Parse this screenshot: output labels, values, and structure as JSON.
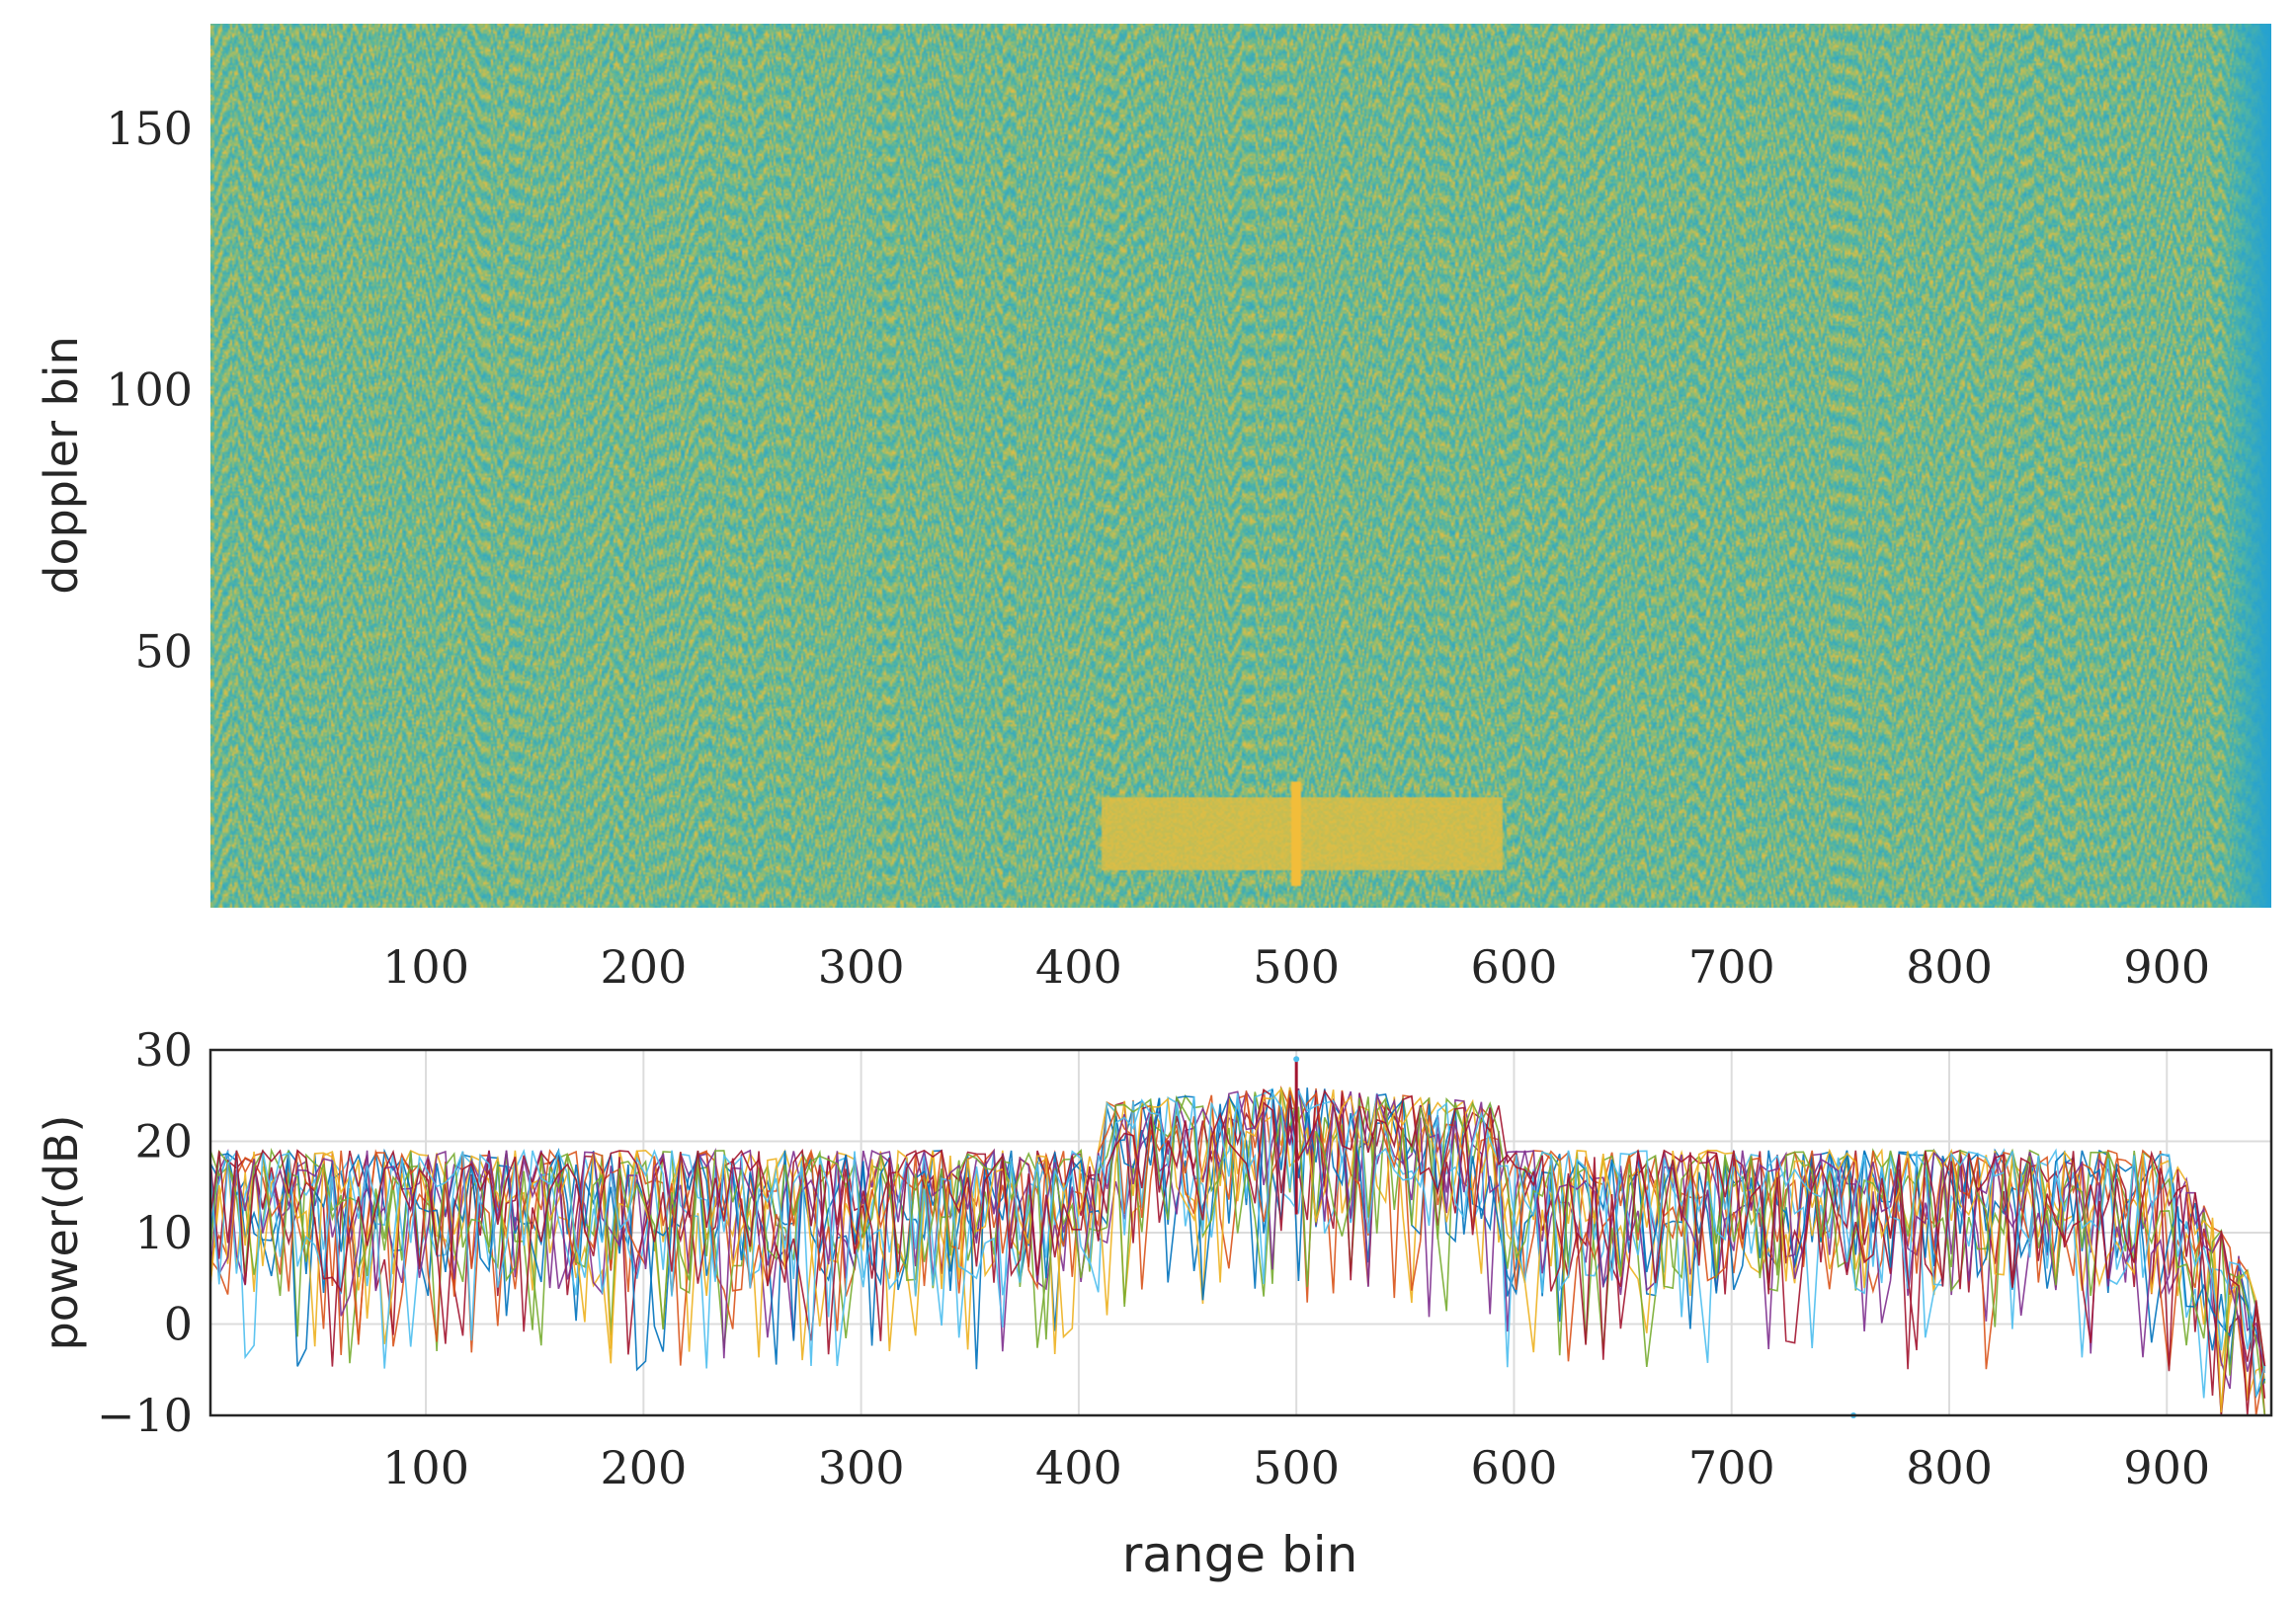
{
  "chart_data": [
    {
      "type": "heatmap",
      "title": "",
      "xlabel": "",
      "ylabel": "doppler bin",
      "xlim": [
        1,
        948
      ],
      "ylim": [
        1,
        170
      ],
      "xticks": [
        100,
        200,
        300,
        400,
        500,
        600,
        700,
        800,
        900
      ],
      "yticks": [
        50,
        100,
        150
      ],
      "colormap": "parula",
      "colors": {
        "low": "#1e9fd8",
        "mid": "#55b6a0",
        "high": "#9fbd68",
        "peak": "#f2bd3a"
      },
      "background_range_dB": [
        0,
        20
      ],
      "regions": [
        {
          "label": "target",
          "x_range": [
            410,
            595
          ],
          "y_range": [
            8,
            22
          ],
          "level_dB": 27
        },
        {
          "label": "target-line",
          "x_range": [
            498,
            502
          ],
          "y_range": [
            5,
            25
          ],
          "level_dB": 30
        },
        {
          "label": "edge-rolloff",
          "x_range": [
            925,
            948
          ],
          "y_range": [
            1,
            170
          ],
          "level_dB": 2
        }
      ]
    },
    {
      "type": "line",
      "title": "",
      "xlabel": "range bin",
      "ylabel": "power(dB)",
      "xlim": [
        1,
        948
      ],
      "ylim": [
        -10,
        30
      ],
      "xticks": [
        100,
        200,
        300,
        400,
        500,
        600,
        700,
        800,
        900
      ],
      "yticks": [
        -10,
        0,
        10,
        20,
        30
      ],
      "grid": true,
      "series_count": 170,
      "series_colors": [
        "#0072bd",
        "#d95319",
        "#edb120",
        "#7e2f8e",
        "#77ac30",
        "#4dbeee",
        "#a2142f"
      ],
      "envelope_peak_dB": {
        "background": 19,
        "target_region": 26,
        "target_line": 29,
        "edge_minimum": -10
      },
      "notable_points": [
        {
          "x": 500,
          "y": 29,
          "label": "peak"
        },
        {
          "x": 756,
          "y": -10,
          "label": "minimum"
        }
      ]
    }
  ]
}
